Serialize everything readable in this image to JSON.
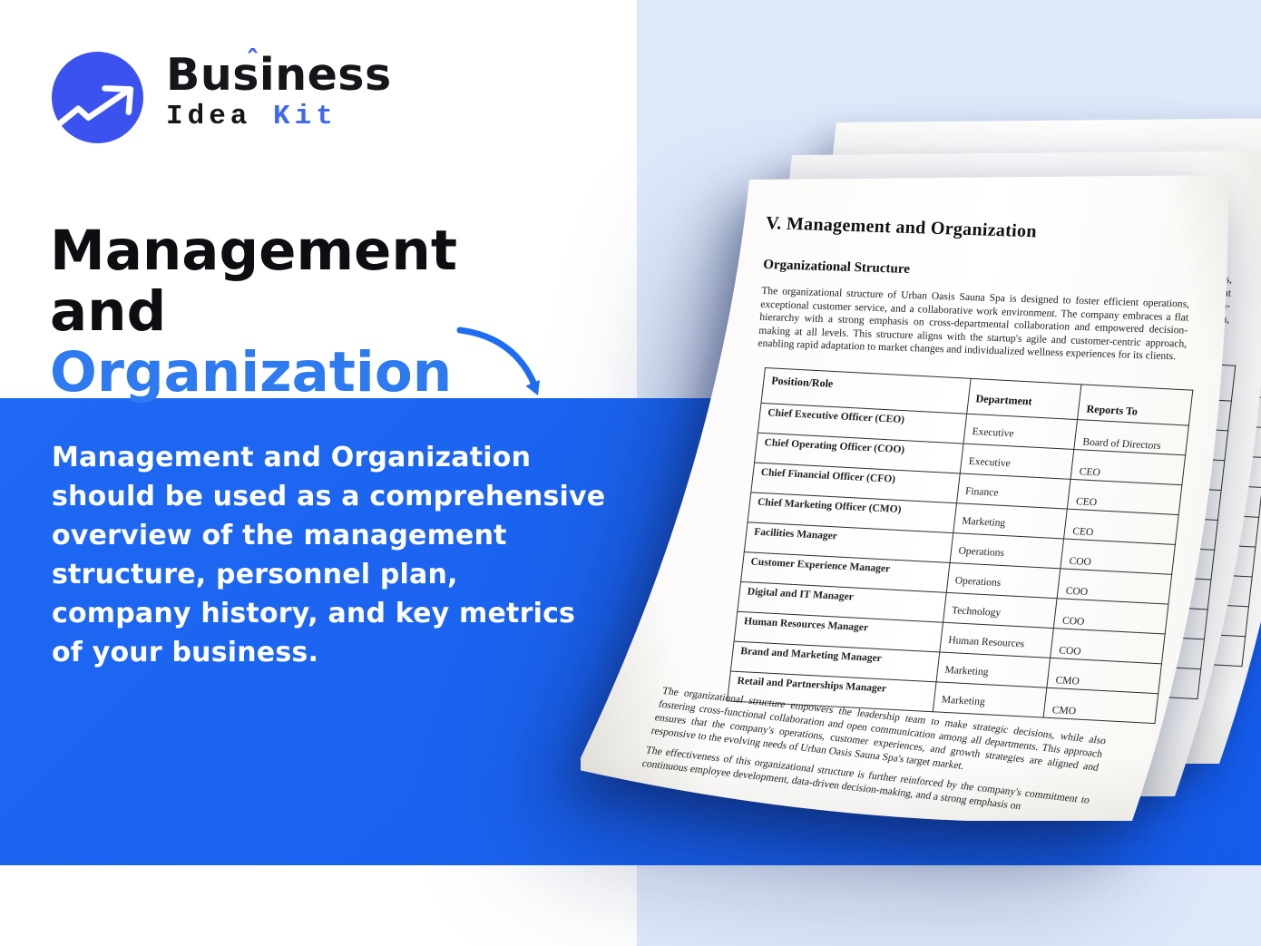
{
  "logo": {
    "brand_top": "Business",
    "accent": "ˆ",
    "brand_bottom_black": "Idea",
    "brand_bottom_blue": "Kit"
  },
  "hero": {
    "title_line1": "Management and",
    "title_line2": "Organization"
  },
  "panel": {
    "description": "Management and Organization\nshould be used as a comprehensive\noverview of the management\nstructure, personnel plan,\ncompany history, and key metrics\nof your business."
  },
  "colors": {
    "panel_blue": "#1a62ef",
    "heading_blue": "#2e7af0",
    "logo_circle_blue": "#3b52ee",
    "kit_blue": "#3e6af3",
    "light_band_blue": "#dfe9fa",
    "heading_black": "#0d0e11",
    "paper_white": "#fbfaf8"
  },
  "document": {
    "title": "V. Management and Organization",
    "section_heading": "Organizational Structure",
    "intro": "The organizational structure of Urban Oasis Sauna Spa is designed to foster efficient operations, exceptional customer service, and a collaborative work environment. The company embraces a flat hierarchy with a strong emphasis on cross-departmental collaboration and empowered decision-making at all levels. This structure aligns with the startup's agile and customer-centric approach, enabling rapid adaptation to market changes and individualized wellness experiences for its clients.",
    "table": {
      "headers": [
        "Position/Role",
        "Department",
        "Reports To"
      ],
      "rows": [
        [
          "Chief Executive Officer (CEO)",
          "Executive",
          "Board of Directors"
        ],
        [
          "Chief Operating Officer (COO)",
          "Executive",
          "CEO"
        ],
        [
          "Chief Financial Officer (CFO)",
          "Finance",
          "CEO"
        ],
        [
          "Chief Marketing Officer (CMO)",
          "Marketing",
          "CEO"
        ],
        [
          "Facilities Manager",
          "Operations",
          "COO"
        ],
        [
          "Customer Experience Manager",
          "Operations",
          "COO"
        ],
        [
          "Digital and IT Manager",
          "Technology",
          "COO"
        ],
        [
          "Human Resources Manager",
          "Human Resources",
          "COO"
        ],
        [
          "Brand and Marketing Manager",
          "Marketing",
          "CMO"
        ],
        [
          "Retail and Partnerships Manager",
          "Marketing",
          "CMO"
        ]
      ]
    },
    "closing_1": "The organizational structure empowers the leadership team to make strategic decisions, while also fostering cross-functional collaboration and open communication among all departments. This approach ensures that the company's operations, customer experiences, and growth strategies are aligned and responsive to the evolving needs of Urban Oasis Sauna Spa's target market.",
    "closing_2": "The effectiveness of this organizational structure is further reinforced by the company's commitment to continuous employee development, data-driven decision-making, and a strong emphasis on"
  }
}
